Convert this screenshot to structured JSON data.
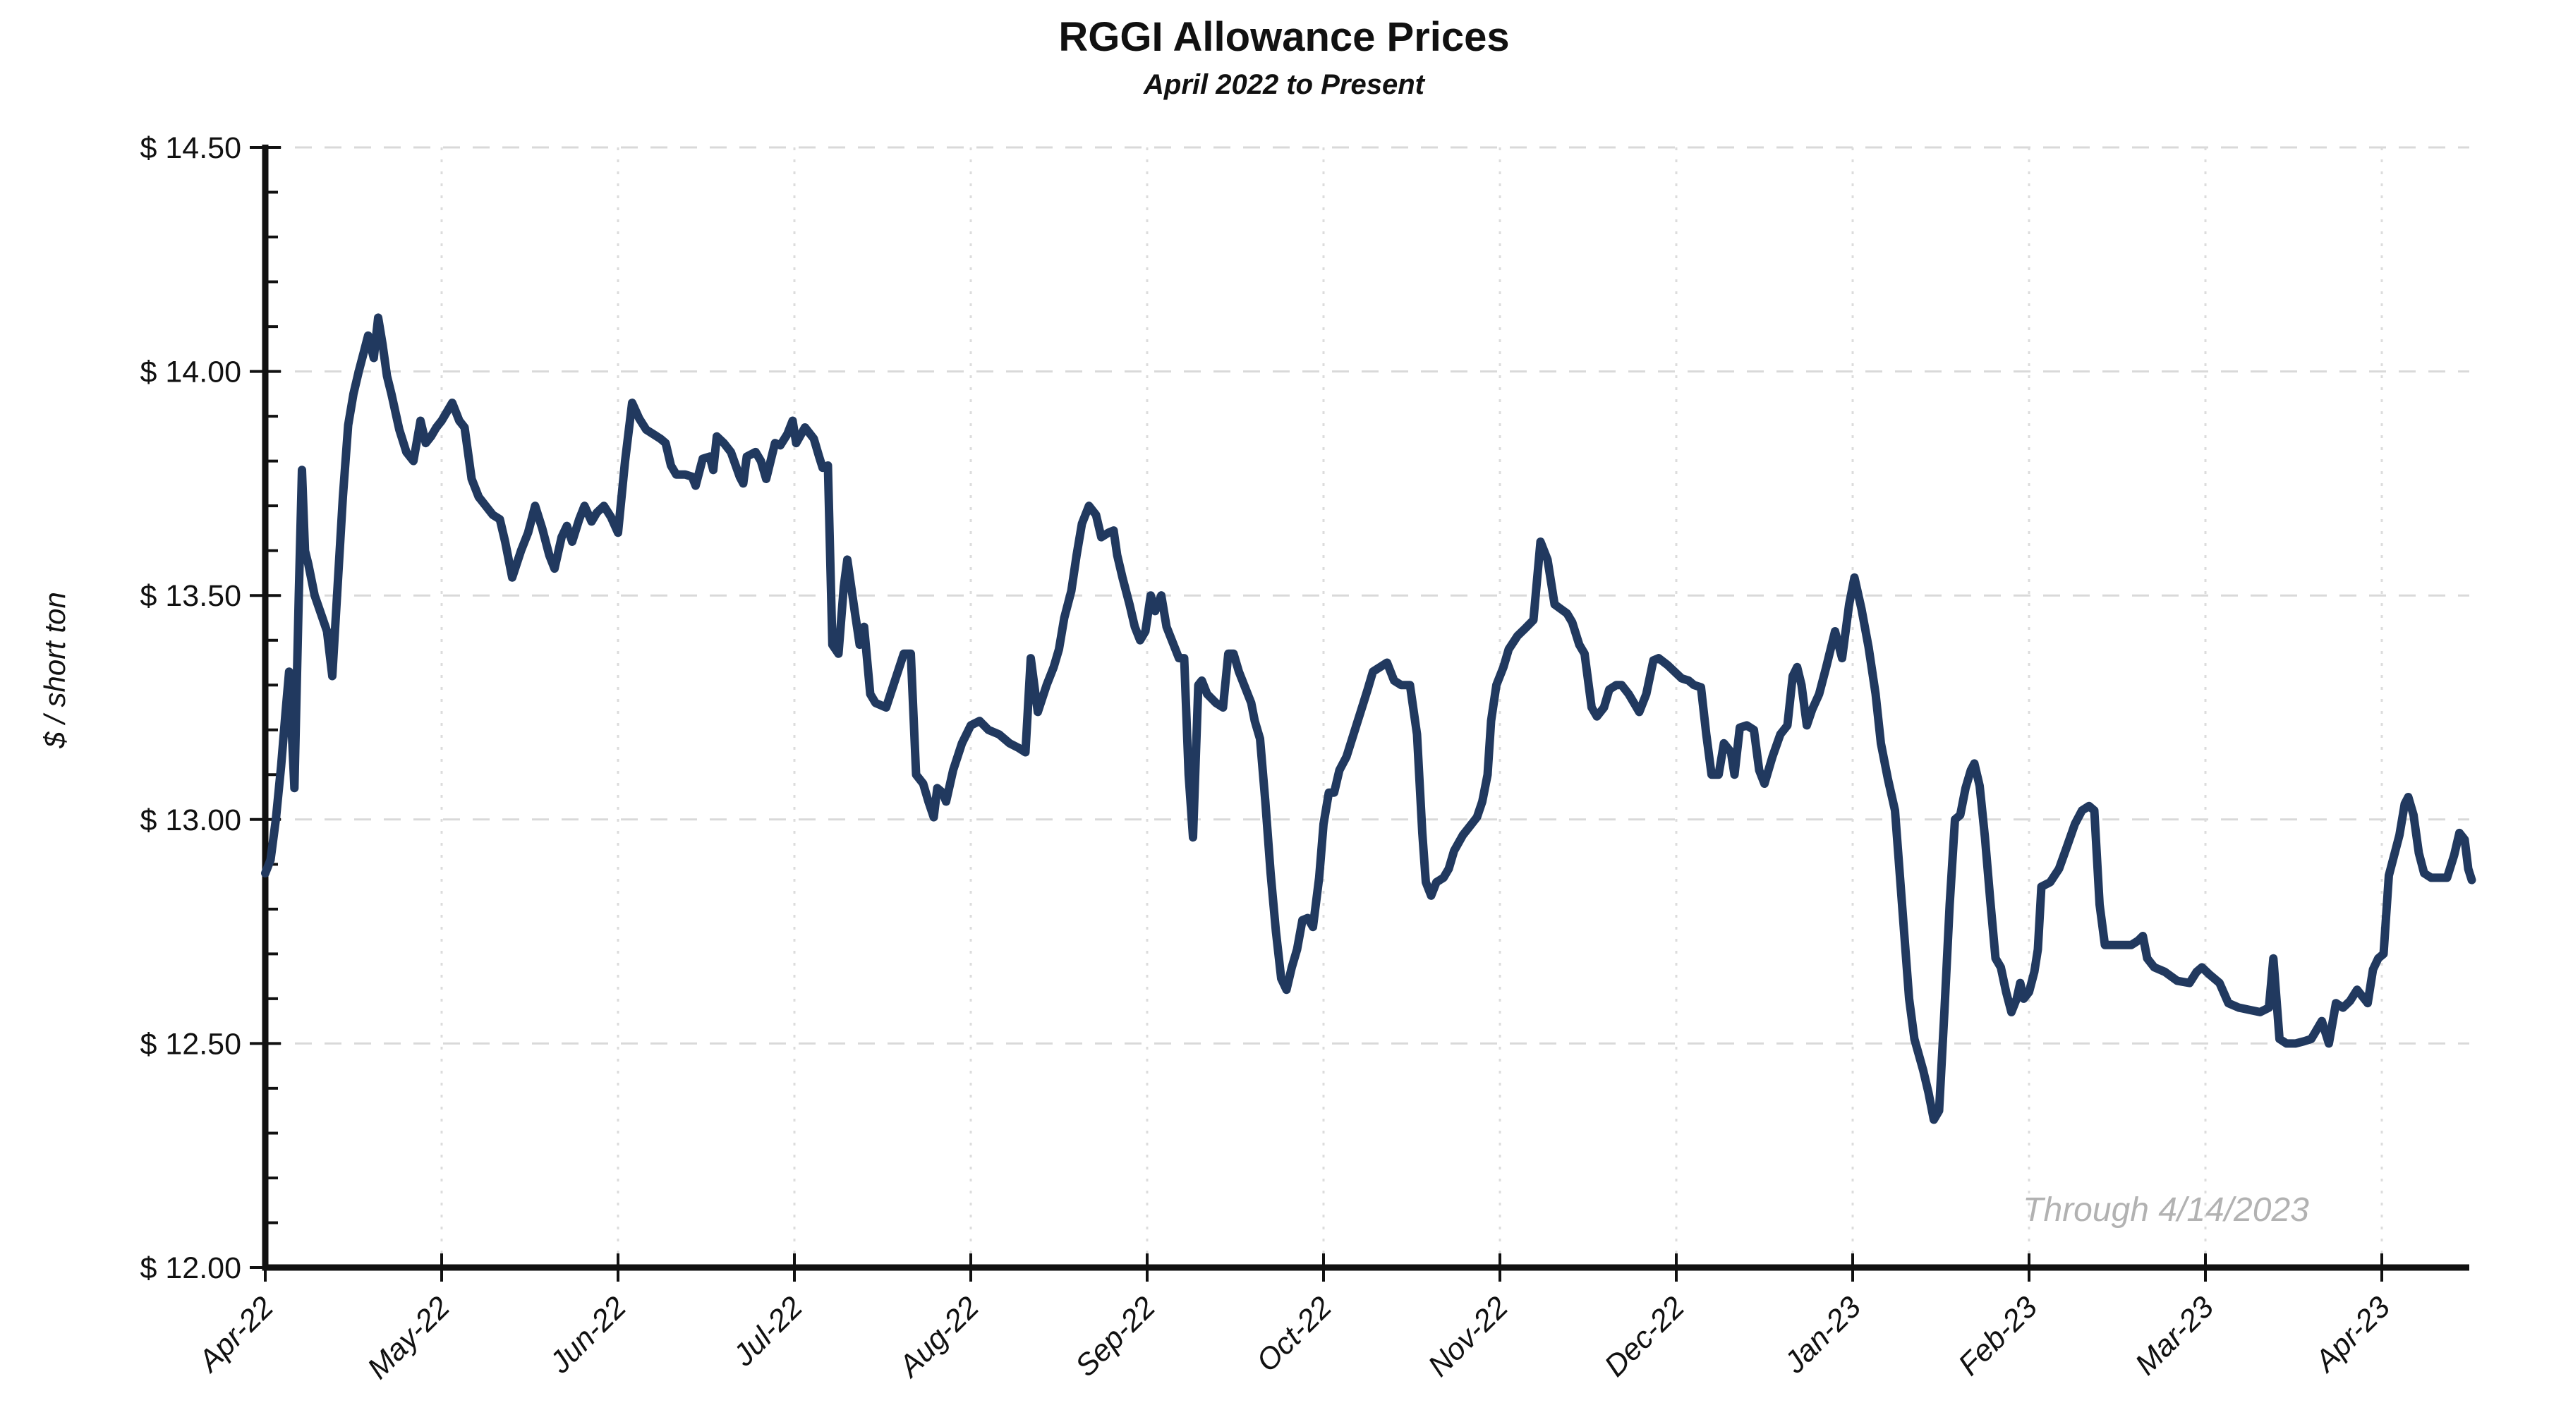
{
  "chart_data": {
    "type": "line",
    "title": "RGGI Allowance Prices",
    "subtitle": "April 2022 to Present",
    "ylabel": "$ / short ton",
    "annotation": "Through 4/14/2023",
    "x_tick_labels": [
      "Apr-22",
      "May-22",
      "Jun-22",
      "Jul-22",
      "Aug-22",
      "Sep-22",
      "Oct-22",
      "Nov-22",
      "Dec-22",
      "Jan-23",
      "Feb-23",
      "Mar-23",
      "Apr-23"
    ],
    "y_ticks": [
      14.5,
      14.0,
      13.5,
      13.0,
      12.5,
      12.0
    ],
    "y_tick_labels": [
      "$ 14.50",
      "$ 14.00",
      "$ 13.50",
      "$ 13.00",
      "$ 12.50",
      "$ 12.00"
    ],
    "ylim": [
      12.0,
      14.5
    ],
    "xlim_months": [
      0,
      12.5
    ],
    "x_axis_unit": "months since Apr-22 tick (daily settlement prices)",
    "y_minor_tick_step": 0.1,
    "grid": "dashed horizontal gridlines at $0.50 steps, dotted vertical gridlines at month ticks",
    "legend": "none",
    "line_color": "#21395f",
    "points": [
      [
        0.0,
        12.88
      ],
      [
        0.03,
        12.91
      ],
      [
        0.06,
        13.0
      ],
      [
        0.09,
        13.12
      ],
      [
        0.115,
        13.24
      ],
      [
        0.135,
        13.33
      ],
      [
        0.15,
        13.2
      ],
      [
        0.165,
        13.07
      ],
      [
        0.19,
        13.5
      ],
      [
        0.208,
        13.78
      ],
      [
        0.225,
        13.6
      ],
      [
        0.244,
        13.57
      ],
      [
        0.28,
        13.5
      ],
      [
        0.324,
        13.45
      ],
      [
        0.35,
        13.42
      ],
      [
        0.38,
        13.32
      ],
      [
        0.41,
        13.52
      ],
      [
        0.44,
        13.72
      ],
      [
        0.47,
        13.88
      ],
      [
        0.5,
        13.95
      ],
      [
        0.53,
        14.0
      ],
      [
        0.56,
        14.045
      ],
      [
        0.583,
        14.08
      ],
      [
        0.615,
        14.03
      ],
      [
        0.64,
        14.12
      ],
      [
        0.665,
        14.06
      ],
      [
        0.69,
        13.99
      ],
      [
        0.715,
        13.95
      ],
      [
        0.76,
        13.87
      ],
      [
        0.8,
        13.82
      ],
      [
        0.84,
        13.8
      ],
      [
        0.88,
        13.89
      ],
      [
        0.91,
        13.84
      ],
      [
        0.94,
        13.855
      ],
      [
        0.97,
        13.875
      ],
      [
        1.0,
        13.89
      ],
      [
        1.03,
        13.91
      ],
      [
        1.06,
        13.93
      ],
      [
        1.1,
        13.89
      ],
      [
        1.13,
        13.875
      ],
      [
        1.17,
        13.76
      ],
      [
        1.21,
        13.72
      ],
      [
        1.25,
        13.7
      ],
      [
        1.29,
        13.68
      ],
      [
        1.33,
        13.67
      ],
      [
        1.36,
        13.62
      ],
      [
        1.4,
        13.54
      ],
      [
        1.45,
        13.6
      ],
      [
        1.49,
        13.64
      ],
      [
        1.53,
        13.7
      ],
      [
        1.57,
        13.65
      ],
      [
        1.61,
        13.59
      ],
      [
        1.64,
        13.56
      ],
      [
        1.68,
        13.63
      ],
      [
        1.71,
        13.655
      ],
      [
        1.74,
        13.62
      ],
      [
        1.78,
        13.67
      ],
      [
        1.81,
        13.7
      ],
      [
        1.85,
        13.665
      ],
      [
        1.88,
        13.685
      ],
      [
        1.92,
        13.7
      ],
      [
        1.96,
        13.675
      ],
      [
        2.0,
        13.64
      ],
      [
        2.04,
        13.8
      ],
      [
        2.08,
        13.93
      ],
      [
        2.12,
        13.895
      ],
      [
        2.16,
        13.87
      ],
      [
        2.2,
        13.86
      ],
      [
        2.24,
        13.85
      ],
      [
        2.27,
        13.84
      ],
      [
        2.3,
        13.79
      ],
      [
        2.33,
        13.77
      ],
      [
        2.38,
        13.77
      ],
      [
        2.42,
        13.765
      ],
      [
        2.44,
        13.745
      ],
      [
        2.48,
        13.805
      ],
      [
        2.52,
        13.81
      ],
      [
        2.54,
        13.78
      ],
      [
        2.56,
        13.855
      ],
      [
        2.6,
        13.84
      ],
      [
        2.64,
        13.82
      ],
      [
        2.69,
        13.765
      ],
      [
        2.71,
        13.75
      ],
      [
        2.73,
        13.81
      ],
      [
        2.78,
        13.82
      ],
      [
        2.81,
        13.8
      ],
      [
        2.84,
        13.76
      ],
      [
        2.89,
        13.84
      ],
      [
        2.92,
        13.835
      ],
      [
        2.96,
        13.86
      ],
      [
        2.99,
        13.89
      ],
      [
        3.01,
        13.84
      ],
      [
        3.06,
        13.875
      ],
      [
        3.11,
        13.85
      ],
      [
        3.14,
        13.81
      ],
      [
        3.16,
        13.785
      ],
      [
        3.19,
        13.79
      ],
      [
        3.215,
        13.39
      ],
      [
        3.25,
        13.37
      ],
      [
        3.28,
        13.52
      ],
      [
        3.3,
        13.58
      ],
      [
        3.34,
        13.47
      ],
      [
        3.37,
        13.39
      ],
      [
        3.395,
        13.43
      ],
      [
        3.43,
        13.28
      ],
      [
        3.46,
        13.26
      ],
      [
        3.52,
        13.25
      ],
      [
        3.57,
        13.31
      ],
      [
        3.62,
        13.37
      ],
      [
        3.66,
        13.37
      ],
      [
        3.69,
        13.1
      ],
      [
        3.73,
        13.08
      ],
      [
        3.76,
        13.04
      ],
      [
        3.79,
        13.005
      ],
      [
        3.81,
        13.07
      ],
      [
        3.84,
        13.06
      ],
      [
        3.86,
        13.04
      ],
      [
        3.9,
        13.11
      ],
      [
        3.95,
        13.17
      ],
      [
        4.0,
        13.21
      ],
      [
        4.05,
        13.22
      ],
      [
        4.1,
        13.2
      ],
      [
        4.16,
        13.19
      ],
      [
        4.22,
        13.17
      ],
      [
        4.27,
        13.16
      ],
      [
        4.31,
        13.15
      ],
      [
        4.34,
        13.36
      ],
      [
        4.38,
        13.24
      ],
      [
        4.43,
        13.3
      ],
      [
        4.47,
        13.34
      ],
      [
        4.5,
        13.38
      ],
      [
        4.53,
        13.45
      ],
      [
        4.57,
        13.51
      ],
      [
        4.6,
        13.59
      ],
      [
        4.63,
        13.66
      ],
      [
        4.67,
        13.7
      ],
      [
        4.71,
        13.68
      ],
      [
        4.74,
        13.63
      ],
      [
        4.78,
        13.64
      ],
      [
        4.81,
        13.645
      ],
      [
        4.83,
        13.59
      ],
      [
        4.86,
        13.54
      ],
      [
        4.9,
        13.48
      ],
      [
        4.93,
        13.43
      ],
      [
        4.96,
        13.4
      ],
      [
        4.99,
        13.42
      ],
      [
        5.02,
        13.5
      ],
      [
        5.045,
        13.465
      ],
      [
        5.08,
        13.5
      ],
      [
        5.11,
        13.43
      ],
      [
        5.15,
        13.39
      ],
      [
        5.18,
        13.36
      ],
      [
        5.21,
        13.36
      ],
      [
        5.235,
        13.1
      ],
      [
        5.26,
        12.96
      ],
      [
        5.29,
        13.3
      ],
      [
        5.31,
        13.31
      ],
      [
        5.34,
        13.28
      ],
      [
        5.39,
        13.26
      ],
      [
        5.43,
        13.25
      ],
      [
        5.46,
        13.37
      ],
      [
        5.49,
        13.37
      ],
      [
        5.52,
        13.33
      ],
      [
        5.55,
        13.3
      ],
      [
        5.59,
        13.26
      ],
      [
        5.61,
        13.22
      ],
      [
        5.64,
        13.18
      ],
      [
        5.67,
        13.04
      ],
      [
        5.7,
        12.88
      ],
      [
        5.73,
        12.75
      ],
      [
        5.76,
        12.645
      ],
      [
        5.79,
        12.62
      ],
      [
        5.82,
        12.67
      ],
      [
        5.85,
        12.71
      ],
      [
        5.88,
        12.775
      ],
      [
        5.91,
        12.78
      ],
      [
        5.94,
        12.76
      ],
      [
        5.975,
        12.87
      ],
      [
        6.0,
        12.99
      ],
      [
        6.03,
        13.06
      ],
      [
        6.06,
        13.06
      ],
      [
        6.09,
        13.11
      ],
      [
        6.13,
        13.14
      ],
      [
        6.17,
        13.19
      ],
      [
        6.21,
        13.24
      ],
      [
        6.25,
        13.29
      ],
      [
        6.28,
        13.33
      ],
      [
        6.32,
        13.34
      ],
      [
        6.36,
        13.35
      ],
      [
        6.4,
        13.31
      ],
      [
        6.44,
        13.3
      ],
      [
        6.49,
        13.3
      ],
      [
        6.53,
        13.19
      ],
      [
        6.56,
        12.97
      ],
      [
        6.58,
        12.86
      ],
      [
        6.61,
        12.83
      ],
      [
        6.64,
        12.86
      ],
      [
        6.68,
        12.87
      ],
      [
        6.71,
        12.89
      ],
      [
        6.74,
        12.93
      ],
      [
        6.79,
        12.965
      ],
      [
        6.83,
        12.985
      ],
      [
        6.87,
        13.005
      ],
      [
        6.9,
        13.04
      ],
      [
        6.93,
        13.1
      ],
      [
        6.95,
        13.22
      ],
      [
        6.98,
        13.3
      ],
      [
        7.02,
        13.34
      ],
      [
        7.05,
        13.38
      ],
      [
        7.1,
        13.41
      ],
      [
        7.14,
        13.425
      ],
      [
        7.19,
        13.445
      ],
      [
        7.23,
        13.62
      ],
      [
        7.27,
        13.58
      ],
      [
        7.31,
        13.48
      ],
      [
        7.345,
        13.47
      ],
      [
        7.38,
        13.46
      ],
      [
        7.41,
        13.44
      ],
      [
        7.45,
        13.39
      ],
      [
        7.48,
        13.37
      ],
      [
        7.52,
        13.25
      ],
      [
        7.55,
        13.23
      ],
      [
        7.59,
        13.25
      ],
      [
        7.62,
        13.29
      ],
      [
        7.66,
        13.3
      ],
      [
        7.69,
        13.3
      ],
      [
        7.73,
        13.28
      ],
      [
        7.76,
        13.26
      ],
      [
        7.79,
        13.24
      ],
      [
        7.83,
        13.28
      ],
      [
        7.87,
        13.355
      ],
      [
        7.9,
        13.36
      ],
      [
        7.95,
        13.345
      ],
      [
        7.99,
        13.33
      ],
      [
        8.03,
        13.315
      ],
      [
        8.07,
        13.31
      ],
      [
        8.1,
        13.3
      ],
      [
        8.14,
        13.295
      ],
      [
        8.17,
        13.19
      ],
      [
        8.2,
        13.1
      ],
      [
        8.24,
        13.1
      ],
      [
        8.27,
        13.17
      ],
      [
        8.31,
        13.15
      ],
      [
        8.33,
        13.1
      ],
      [
        8.36,
        13.205
      ],
      [
        8.4,
        13.21
      ],
      [
        8.44,
        13.2
      ],
      [
        8.47,
        13.11
      ],
      [
        8.5,
        13.08
      ],
      [
        8.545,
        13.14
      ],
      [
        8.59,
        13.19
      ],
      [
        8.63,
        13.21
      ],
      [
        8.66,
        13.32
      ],
      [
        8.685,
        13.34
      ],
      [
        8.71,
        13.3
      ],
      [
        8.74,
        13.21
      ],
      [
        8.77,
        13.245
      ],
      [
        8.81,
        13.28
      ],
      [
        8.85,
        13.34
      ],
      [
        8.9,
        13.42
      ],
      [
        8.94,
        13.36
      ],
      [
        8.98,
        13.48
      ],
      [
        9.01,
        13.54
      ],
      [
        9.05,
        13.47
      ],
      [
        9.09,
        13.385
      ],
      [
        9.13,
        13.28
      ],
      [
        9.16,
        13.17
      ],
      [
        9.2,
        13.09
      ],
      [
        9.24,
        13.02
      ],
      [
        9.28,
        12.81
      ],
      [
        9.32,
        12.6
      ],
      [
        9.35,
        12.51
      ],
      [
        9.4,
        12.44
      ],
      [
        9.43,
        12.39
      ],
      [
        9.46,
        12.33
      ],
      [
        9.49,
        12.35
      ],
      [
        9.52,
        12.57
      ],
      [
        9.55,
        12.81
      ],
      [
        9.58,
        13.0
      ],
      [
        9.61,
        13.01
      ],
      [
        9.64,
        13.07
      ],
      [
        9.67,
        13.11
      ],
      [
        9.69,
        13.125
      ],
      [
        9.72,
        13.075
      ],
      [
        9.75,
        12.96
      ],
      [
        9.78,
        12.82
      ],
      [
        9.81,
        12.69
      ],
      [
        9.84,
        12.67
      ],
      [
        9.87,
        12.615
      ],
      [
        9.9,
        12.57
      ],
      [
        9.93,
        12.6
      ],
      [
        9.95,
        12.635
      ],
      [
        9.97,
        12.6
      ],
      [
        10.0,
        12.615
      ],
      [
        10.03,
        12.66
      ],
      [
        10.05,
        12.71
      ],
      [
        10.07,
        12.85
      ],
      [
        10.12,
        12.86
      ],
      [
        10.17,
        12.89
      ],
      [
        10.22,
        12.945
      ],
      [
        10.26,
        12.99
      ],
      [
        10.3,
        13.02
      ],
      [
        10.34,
        13.03
      ],
      [
        10.37,
        13.02
      ],
      [
        10.4,
        12.81
      ],
      [
        10.43,
        12.72
      ],
      [
        10.48,
        12.72
      ],
      [
        10.53,
        12.72
      ],
      [
        10.58,
        12.72
      ],
      [
        10.62,
        12.73
      ],
      [
        10.645,
        12.74
      ],
      [
        10.67,
        12.69
      ],
      [
        10.71,
        12.67
      ],
      [
        10.77,
        12.66
      ],
      [
        10.84,
        12.64
      ],
      [
        10.91,
        12.635
      ],
      [
        10.95,
        12.66
      ],
      [
        10.98,
        12.67
      ],
      [
        11.02,
        12.655
      ],
      [
        11.08,
        12.635
      ],
      [
        11.13,
        12.59
      ],
      [
        11.19,
        12.58
      ],
      [
        11.25,
        12.575
      ],
      [
        11.31,
        12.57
      ],
      [
        11.36,
        12.58
      ],
      [
        11.385,
        12.69
      ],
      [
        11.42,
        12.51
      ],
      [
        11.46,
        12.5
      ],
      [
        11.51,
        12.5
      ],
      [
        11.56,
        12.505
      ],
      [
        11.6,
        12.51
      ],
      [
        11.63,
        12.53
      ],
      [
        11.66,
        12.55
      ],
      [
        11.7,
        12.5
      ],
      [
        11.74,
        12.59
      ],
      [
        11.78,
        12.58
      ],
      [
        11.82,
        12.595
      ],
      [
        11.86,
        12.62
      ],
      [
        11.89,
        12.605
      ],
      [
        11.92,
        12.59
      ],
      [
        11.95,
        12.665
      ],
      [
        11.98,
        12.69
      ],
      [
        12.01,
        12.7
      ],
      [
        12.04,
        12.875
      ],
      [
        12.07,
        12.92
      ],
      [
        12.1,
        12.965
      ],
      [
        12.13,
        13.035
      ],
      [
        12.15,
        13.05
      ],
      [
        12.18,
        13.01
      ],
      [
        12.21,
        12.925
      ],
      [
        12.24,
        12.88
      ],
      [
        12.28,
        12.87
      ],
      [
        12.33,
        12.87
      ],
      [
        12.37,
        12.87
      ],
      [
        12.41,
        12.92
      ],
      [
        12.44,
        12.97
      ],
      [
        12.47,
        12.955
      ],
      [
        12.49,
        12.89
      ],
      [
        12.51,
        12.865
      ]
    ]
  }
}
